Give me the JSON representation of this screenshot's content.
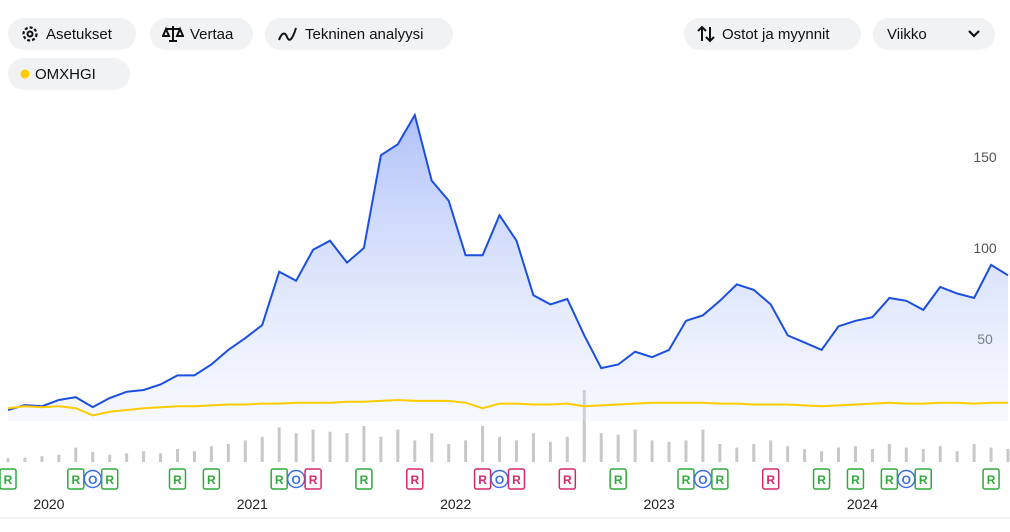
{
  "toolbar": {
    "settings": "Asetukset",
    "compare": "Vertaa",
    "technical": "Tekninen analyysi",
    "trades": "Ostot ja myynnit",
    "interval": "Viikko"
  },
  "chart_data": {
    "type": "line",
    "categories": [
      null,
      null,
      "2020",
      null,
      null,
      null,
      null,
      null,
      null,
      null,
      null,
      null,
      null,
      null,
      "2021",
      null,
      null,
      null,
      null,
      null,
      null,
      null,
      null,
      null,
      null,
      null,
      "2022",
      null,
      null,
      null,
      null,
      null,
      null,
      null,
      null,
      null,
      null,
      null,
      "2023",
      null,
      null,
      null,
      null,
      null,
      null,
      null,
      null,
      null,
      null,
      null,
      "2024",
      null,
      null,
      null,
      null,
      null,
      null,
      null,
      null,
      null
    ],
    "series": [
      {
        "color": "#1a4fe0",
        "values": [
          11,
          13.7,
          13,
          16.5,
          18,
          12.6,
          17.6,
          21,
          22,
          25,
          30,
          30,
          36,
          44,
          50.5,
          57.7,
          87,
          82,
          99,
          104,
          92,
          100,
          151,
          157,
          173,
          137,
          126,
          96,
          96,
          118,
          104,
          74,
          69,
          72,
          52,
          34,
          36,
          43,
          40,
          44,
          60,
          63,
          71,
          80,
          77,
          69,
          52,
          48,
          44,
          57,
          60,
          62,
          72.5,
          71,
          66,
          78.6,
          75,
          72.5,
          90.7,
          85
        ]
      },
      {
        "name": "OMXHGI",
        "color": "#ffcc00",
        "values": [
          12,
          13,
          12.5,
          13,
          12,
          8,
          10,
          11,
          12,
          12.5,
          13,
          13,
          13.5,
          14,
          14,
          14.5,
          14.5,
          15,
          15,
          15,
          15.5,
          15.5,
          16,
          16.5,
          16,
          16,
          16,
          15,
          12,
          14.5,
          14.5,
          14,
          14,
          14.5,
          13,
          13.5,
          14,
          14.5,
          15,
          15,
          15,
          15,
          14.5,
          14.5,
          14,
          14,
          14,
          13.5,
          13,
          13.5,
          14,
          14.5,
          15,
          14.5,
          14.5,
          15,
          15,
          14.5,
          15,
          15
        ]
      }
    ],
    "volume": {
      "color": "#c8c8c8",
      "ylim": [
        0,
        100
      ],
      "values": [
        5,
        6,
        8,
        10,
        20,
        14,
        10,
        12,
        15,
        12,
        18,
        15,
        22,
        25,
        30,
        35,
        48,
        40,
        45,
        42,
        40,
        50,
        35,
        45,
        30,
        40,
        25,
        30,
        50,
        35,
        30,
        40,
        28,
        35,
        100,
        40,
        38,
        45,
        30,
        28,
        30,
        45,
        25,
        20,
        25,
        30,
        22,
        18,
        15,
        20,
        22,
        18,
        25,
        20,
        18,
        22,
        15,
        25,
        20,
        18
      ]
    },
    "events": [
      {
        "x": 0,
        "label": "R",
        "color": "#2eaa3a"
      },
      {
        "x": 4,
        "label": "R",
        "color": "#2eaa3a"
      },
      {
        "x": 5,
        "label": "O",
        "color": "#3b6ee8"
      },
      {
        "x": 6,
        "label": "R",
        "color": "#2eaa3a"
      },
      {
        "x": 10,
        "label": "R",
        "color": "#2eaa3a"
      },
      {
        "x": 12,
        "label": "R",
        "color": "#2eaa3a"
      },
      {
        "x": 16,
        "label": "R",
        "color": "#2eaa3a"
      },
      {
        "x": 17,
        "label": "O",
        "color": "#3b6ee8"
      },
      {
        "x": 18,
        "label": "R",
        "color": "#d6266b"
      },
      {
        "x": 21,
        "label": "R",
        "color": "#2eaa3a"
      },
      {
        "x": 24,
        "label": "R",
        "color": "#d6266b"
      },
      {
        "x": 28,
        "label": "R",
        "color": "#d6266b"
      },
      {
        "x": 29,
        "label": "O",
        "color": "#3b6ee8"
      },
      {
        "x": 30,
        "label": "R",
        "color": "#d6266b"
      },
      {
        "x": 33,
        "label": "R",
        "color": "#d6266b"
      },
      {
        "x": 36,
        "label": "R",
        "color": "#2eaa3a"
      },
      {
        "x": 40,
        "label": "R",
        "color": "#2eaa3a"
      },
      {
        "x": 41,
        "label": "O",
        "color": "#3b6ee8"
      },
      {
        "x": 42,
        "label": "R",
        "color": "#2eaa3a"
      },
      {
        "x": 45,
        "label": "R",
        "color": "#d6266b"
      },
      {
        "x": 48,
        "label": "R",
        "color": "#2eaa3a"
      },
      {
        "x": 50,
        "label": "R",
        "color": "#2eaa3a"
      },
      {
        "x": 52,
        "label": "R",
        "color": "#2eaa3a"
      },
      {
        "x": 53,
        "label": "O",
        "color": "#3b6ee8"
      },
      {
        "x": 54,
        "label": "R",
        "color": "#2eaa3a"
      },
      {
        "x": 58,
        "label": "R",
        "color": "#2eaa3a"
      }
    ],
    "ylim": [
      5,
      185
    ],
    "yticks": [
      50,
      100,
      150
    ],
    "grid": false
  }
}
